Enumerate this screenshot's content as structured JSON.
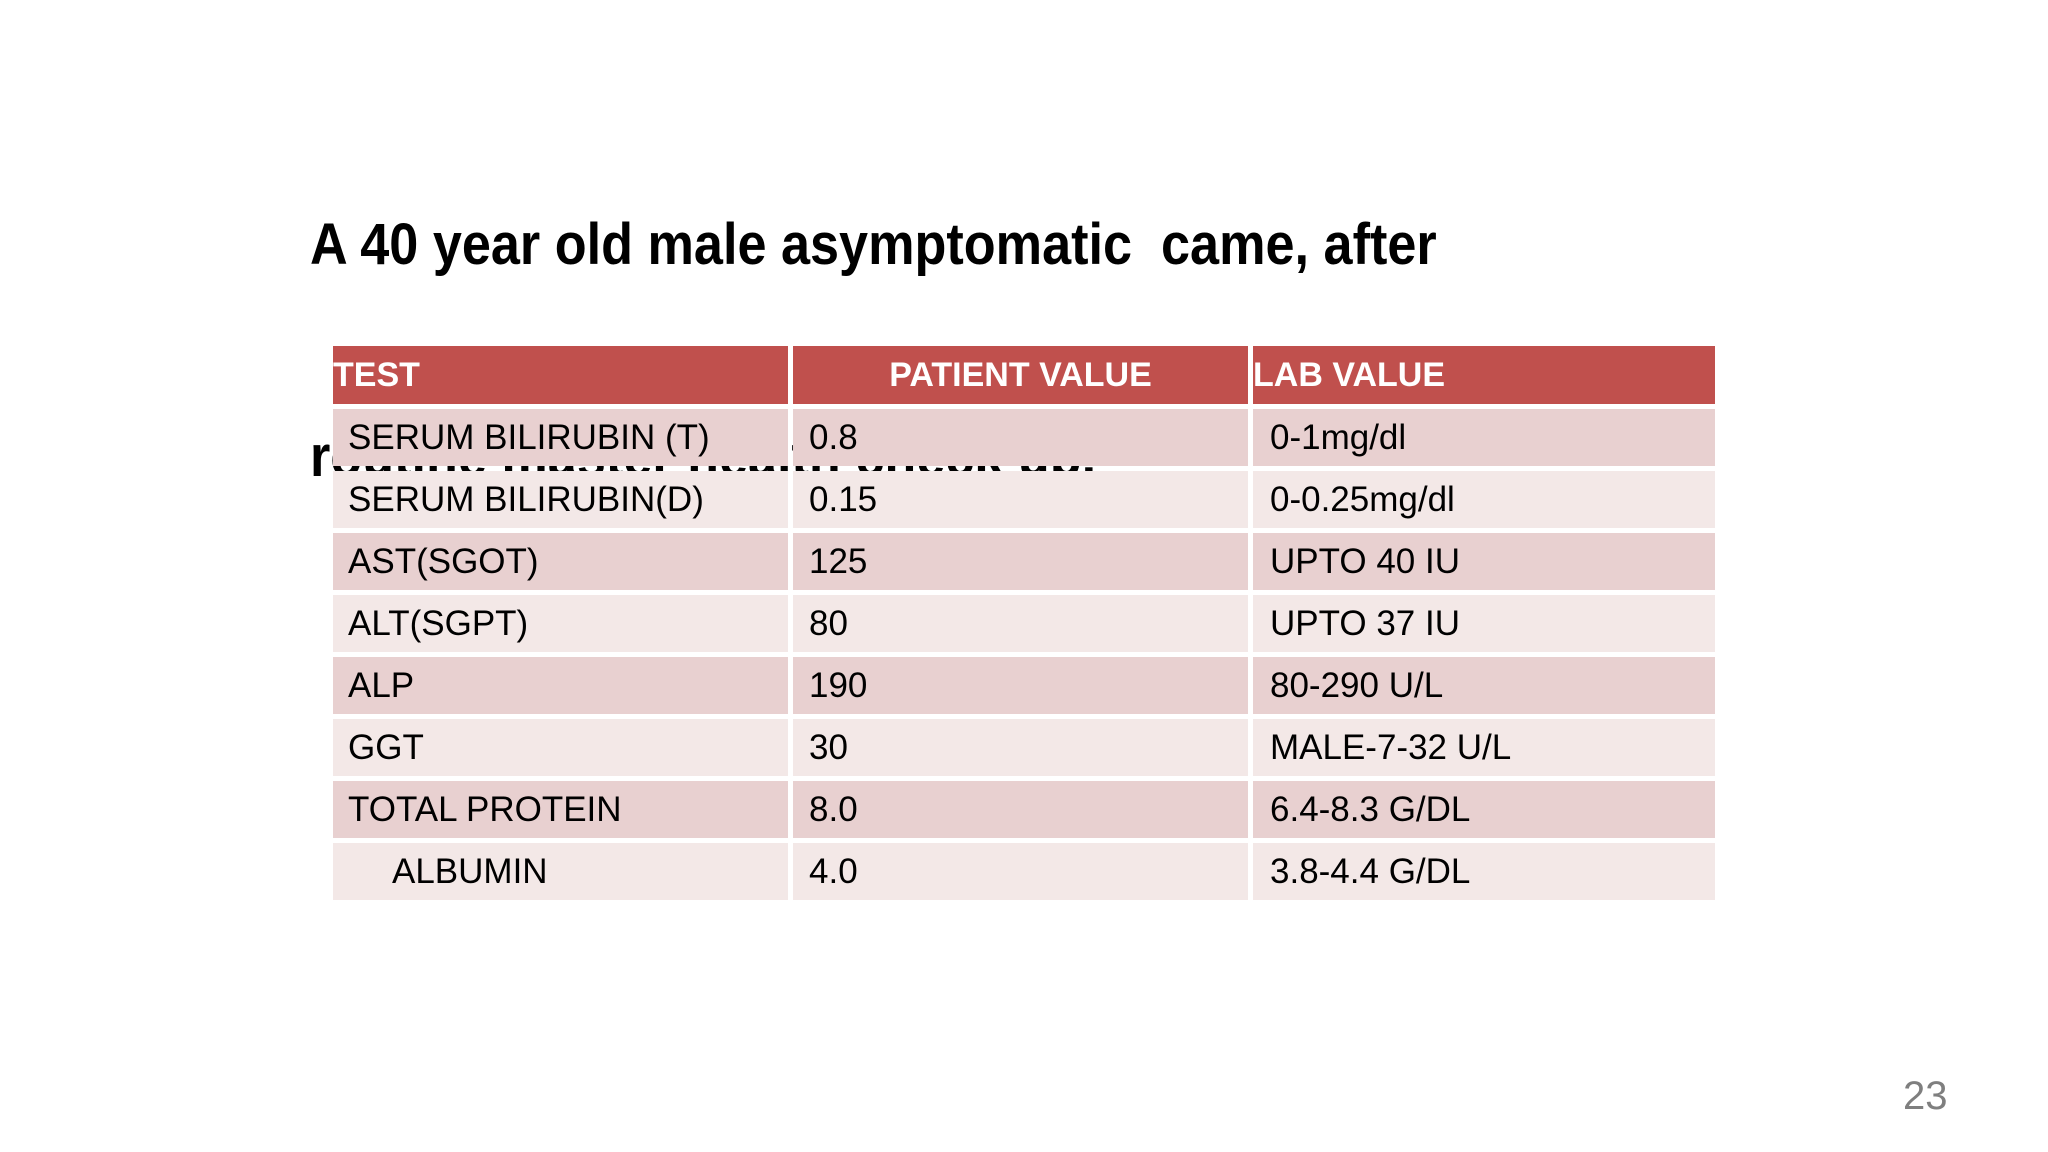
{
  "title": {
    "line1": "A 40 year old male asymptomatic  came, after",
    "line2": "routine master health check up."
  },
  "page_number": "23",
  "colors": {
    "header_bg": "#c0504d",
    "header_text": "#ffffff",
    "row_band_dark": "#e8d0d0",
    "row_band_light": "#f3e8e7",
    "title_text": "#000000",
    "page_number_text": "#7f7f7f"
  },
  "table": {
    "headers": [
      "TEST",
      "PATIENT VALUE",
      "LAB VALUE"
    ],
    "rows": [
      {
        "test": "SERUM BILIRUBIN (T)",
        "patient_value": "0.8",
        "lab_value": "0-1mg/dl"
      },
      {
        "test": "SERUM BILIRUBIN(D)",
        "patient_value": "0.15",
        "lab_value": "0-0.25mg/dl"
      },
      {
        "test": "AST(SGOT)",
        "patient_value": "125",
        "lab_value": "UPTO 40 IU"
      },
      {
        "test": "ALT(SGPT)",
        "patient_value": "80",
        "lab_value": "UPTO 37 IU"
      },
      {
        "test": "ALP",
        "patient_value": "190",
        "lab_value": "80-290 U/L"
      },
      {
        "test": "GGT",
        "patient_value": "30",
        "lab_value": "MALE-7-32 U/L"
      },
      {
        "test": "TOTAL PROTEIN",
        "patient_value": "8.0",
        "lab_value": "6.4-8.3 G/DL"
      },
      {
        "test": "ALBUMIN",
        "patient_value": "4.0",
        "lab_value": "3.8-4.4 G/DL"
      }
    ]
  }
}
